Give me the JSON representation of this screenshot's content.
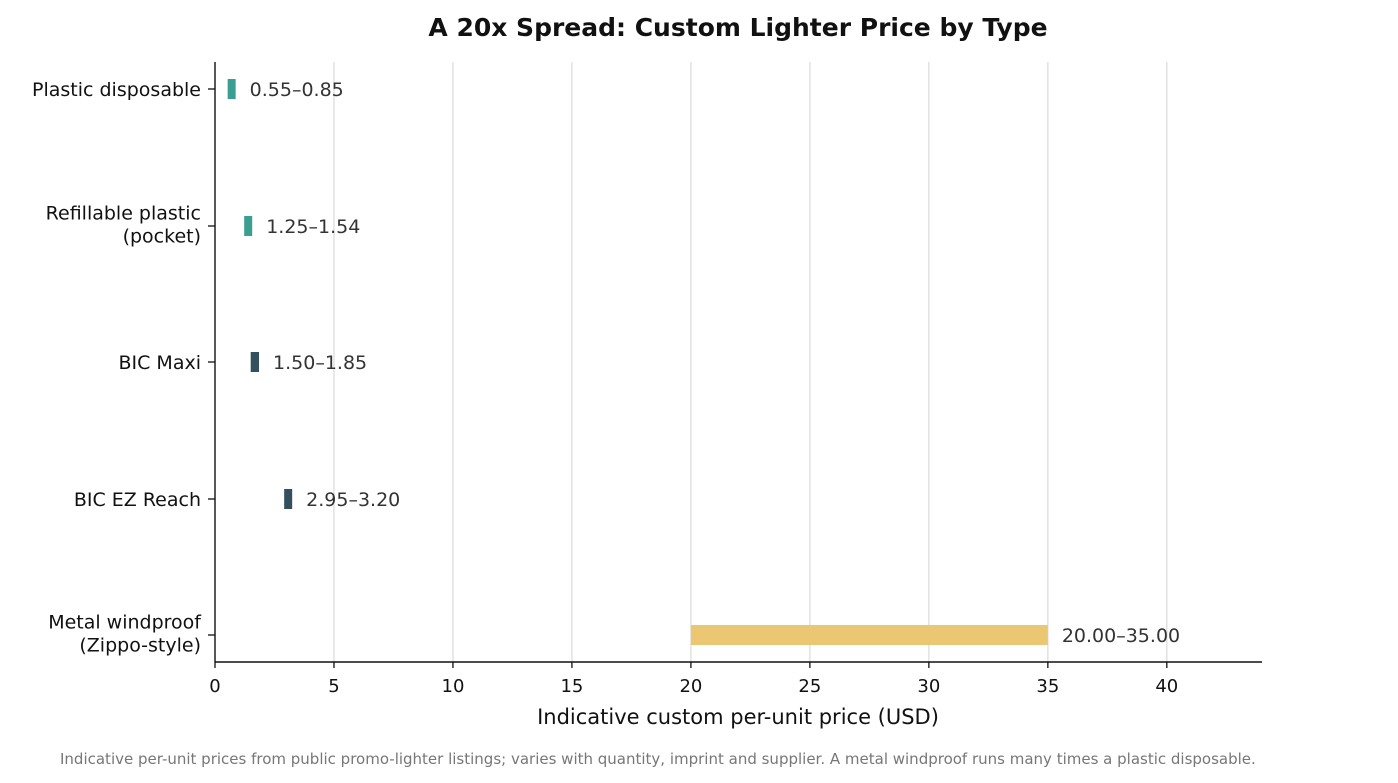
{
  "chart_data": {
    "type": "bar",
    "orientation": "horizontal-range",
    "title": "A 20x Spread: Custom Lighter Price by Type",
    "xlabel": "Indicative custom per-unit price (USD)",
    "ylabel": "",
    "xlim": [
      0,
      44
    ],
    "xticks": [
      0,
      5,
      10,
      15,
      20,
      25,
      30,
      35,
      40
    ],
    "grid": "vertical",
    "categories": [
      [
        "Plastic disposable"
      ],
      [
        "Refillable plastic",
        "(pocket)"
      ],
      [
        "BIC Maxi"
      ],
      [
        "BIC EZ Reach"
      ],
      [
        "Metal windproof",
        "(Zippo-style)"
      ]
    ],
    "ranges": [
      {
        "low": 0.55,
        "high": 0.85,
        "label": "0.55–0.85",
        "color": "#3a9e92"
      },
      {
        "low": 1.25,
        "high": 1.54,
        "label": "1.25–1.54",
        "color": "#3a9e92"
      },
      {
        "low": 1.5,
        "high": 1.85,
        "label": "1.50–1.85",
        "color": "#34505e"
      },
      {
        "low": 2.95,
        "high": 3.2,
        "label": "2.95–3.20",
        "color": "#34505e"
      },
      {
        "low": 20.0,
        "high": 35.0,
        "label": "20.00–35.00",
        "color": "#ebc774"
      }
    ],
    "footnote": "Indicative per-unit prices from public promo-lighter listings; varies with quantity, imprint and supplier. A metal windproof runs many times a plastic disposable."
  }
}
